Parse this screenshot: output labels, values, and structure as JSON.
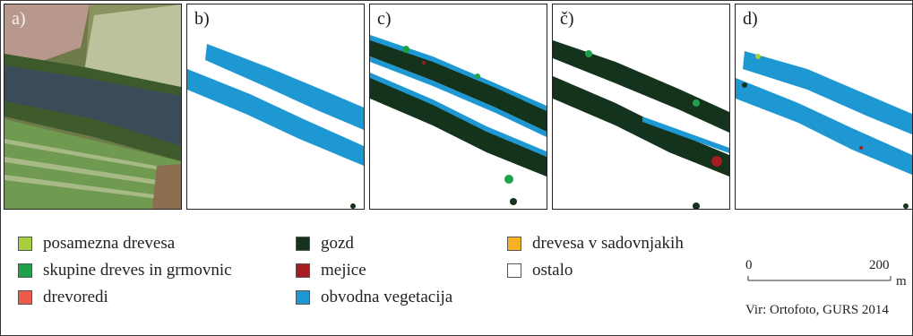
{
  "panels": [
    {
      "label": "a)",
      "content": "orthophoto"
    },
    {
      "label": "b)",
      "content": "classification-map"
    },
    {
      "label": "c)",
      "content": "classification-map"
    },
    {
      "label": "č)",
      "content": "classification-map"
    },
    {
      "label": "d)",
      "content": "classification-map"
    }
  ],
  "legend": [
    {
      "label": "posamezna drevesa",
      "color": "#a8cf3c"
    },
    {
      "label": "skupine dreves in grmovnic",
      "color": "#1fa14b"
    },
    {
      "label": "drevoredi",
      "color": "#ef5a4b"
    },
    {
      "label": "gozd",
      "color": "#14331c"
    },
    {
      "label": "mejice",
      "color": "#a51c23"
    },
    {
      "label": "obvodna vegetacija",
      "color": "#1e98d3"
    },
    {
      "label": "drevesa v sadovnjakih",
      "color": "#f5b324"
    },
    {
      "label": "ostalo",
      "color": "#ffffff"
    }
  ],
  "scale_bar": {
    "start": "0",
    "end": "200",
    "unit": "m"
  },
  "source": "Vir: Ortofoto, GURS 2014"
}
